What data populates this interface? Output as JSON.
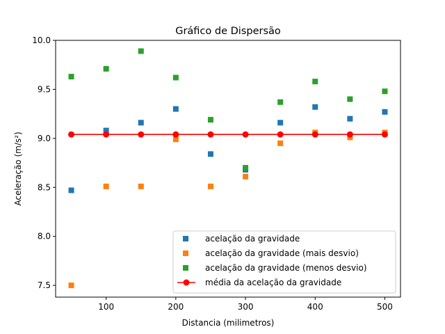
{
  "chart_data": {
    "type": "scatter",
    "title": "Gráfico de Dispersão",
    "xlabel": "Distancia (milimetros)",
    "ylabel": "Aceleração (m/s²)",
    "xlim": [
      27.5,
      522.5
    ],
    "ylim": [
      7.38,
      10.0
    ],
    "xticks": [
      100,
      200,
      300,
      400,
      500
    ],
    "yticks": [
      7.5,
      8.0,
      8.5,
      9.0,
      9.5,
      10.0
    ],
    "ytick_labels": [
      "7.5",
      "8.0",
      "8.5",
      "9.0",
      "9.5",
      "10.0"
    ],
    "grid": false,
    "legend_position": "lower-right",
    "x": [
      50,
      100,
      150,
      200,
      250,
      300,
      350,
      400,
      450,
      500
    ],
    "series": [
      {
        "name": "acelação da gravidade",
        "kind": "scatter",
        "marker": "square",
        "color": "#1f77b4",
        "values": [
          8.47,
          9.08,
          9.16,
          9.3,
          8.84,
          8.68,
          9.16,
          9.32,
          9.2,
          9.27
        ]
      },
      {
        "name": "acelação da gravidade (mais desvio)",
        "kind": "scatter",
        "marker": "square",
        "color": "#ff7f0e",
        "values": [
          7.5,
          8.51,
          8.51,
          8.99,
          8.51,
          8.61,
          8.95,
          9.06,
          9.01,
          9.06
        ]
      },
      {
        "name": "acelação da gravidade (menos desvio)",
        "kind": "scatter",
        "marker": "square",
        "color": "#2ca02c",
        "values": [
          9.63,
          9.71,
          9.89,
          9.62,
          9.19,
          8.7,
          9.37,
          9.58,
          9.4,
          9.48
        ]
      },
      {
        "name": "média da acelação da gravidade",
        "kind": "line",
        "marker": "circle",
        "color": "#ff0000",
        "values": [
          9.04,
          9.04,
          9.04,
          9.04,
          9.04,
          9.04,
          9.04,
          9.04,
          9.04,
          9.04
        ]
      }
    ]
  }
}
